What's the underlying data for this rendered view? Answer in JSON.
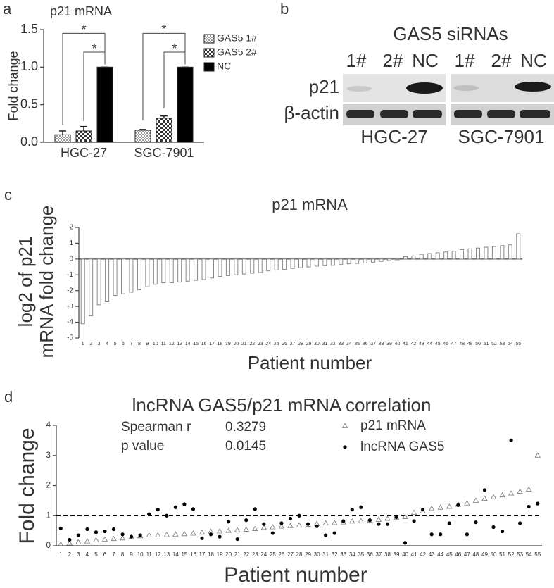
{
  "chart_data": [
    {
      "type": "bar",
      "label": "a",
      "title": "p21 mRNA",
      "ylabel": "Fold change",
      "categories": [
        "HGC-27",
        "SGC-7901"
      ],
      "series": [
        {
          "name": "GAS5 1#",
          "color": "#9a9a9a",
          "values": [
            0.1,
            0.16
          ],
          "errors": [
            0.05,
            0.01
          ]
        },
        {
          "name": "GAS5 2#",
          "color": "#333333",
          "values": [
            0.15,
            0.32
          ],
          "errors": [
            0.06,
            0.03
          ]
        },
        {
          "name": "NC",
          "color": "#000000",
          "values": [
            1.0,
            1.0
          ],
          "errors": [
            0,
            0
          ]
        }
      ],
      "significance": [
        "*",
        "*",
        "*",
        "*"
      ],
      "ylim": [
        0,
        1.5
      ],
      "yticks": [
        {
          "value": 0,
          "label": "0.0"
        },
        0.5,
        {
          "value": 1,
          "label": "1.0"
        },
        {
          "value": 1.5,
          "label": "1.5"
        }
      ]
    },
    {
      "type": "bar",
      "label": "c",
      "title": "p21 mRNA",
      "ylabel": [
        "log2 of p21",
        "mRNA fold change"
      ],
      "xlabel": "Patient number",
      "categories": [
        "1",
        "2",
        "3",
        "4",
        "5",
        "6",
        "7",
        "8",
        "9",
        "10",
        "11",
        "12",
        "13",
        "14",
        "15",
        "16",
        "17",
        "18",
        "19",
        "20",
        "21",
        "22",
        "23",
        "24",
        "25",
        "26",
        "27",
        "28",
        "29",
        "30",
        "31",
        "32",
        "33",
        "34",
        "35",
        "36",
        "37",
        "38",
        "39",
        "40",
        "41",
        "42",
        "43",
        "44",
        "45",
        "46",
        "47",
        "48",
        "49",
        "50",
        "51",
        "52",
        "53",
        "54",
        "55"
      ],
      "values": [
        -4.1,
        -3.6,
        -2.9,
        -2.7,
        -2.3,
        -2.2,
        -2.1,
        -1.95,
        -1.75,
        -1.6,
        -1.5,
        -1.5,
        -1.45,
        -1.4,
        -1.35,
        -1.3,
        -1.2,
        -1.1,
        -1.05,
        -1.0,
        -0.95,
        -0.9,
        -0.85,
        -0.75,
        -0.7,
        -0.65,
        -0.6,
        -0.55,
        -0.5,
        -0.45,
        -0.42,
        -0.4,
        -0.35,
        -0.3,
        -0.28,
        -0.25,
        -0.2,
        -0.15,
        -0.1,
        -0.05,
        0.15,
        0.2,
        0.3,
        0.35,
        0.4,
        0.45,
        0.5,
        0.6,
        0.65,
        0.7,
        0.75,
        0.8,
        0.85,
        0.9,
        1.6
      ],
      "color": "#888888",
      "ylim": [
        -5,
        2
      ],
      "yticks": [
        -5,
        -4,
        -3,
        -2,
        -1,
        0,
        1,
        2
      ]
    },
    {
      "type": "scatter",
      "label": "d",
      "title": "lncRNA GAS5/p21 mRNA correlation",
      "ylabel": "Fold change",
      "xlabel": "Patient number",
      "stats": [
        {
          "label": "Spearman r",
          "value": 0.3279
        },
        {
          "label": "p value",
          "value": 0.0145
        }
      ],
      "categories": [
        "1",
        "2",
        "3",
        "4",
        "5",
        "6",
        "7",
        "8",
        "9",
        "10",
        "11",
        "12",
        "13",
        "14",
        "15",
        "16",
        "17",
        "18",
        "19",
        "20",
        "21",
        "22",
        "23",
        "24",
        "25",
        "26",
        "27",
        "28",
        "29",
        "30",
        "31",
        "32",
        "33",
        "34",
        "35",
        "36",
        "37",
        "38",
        "39",
        "40",
        "41",
        "42",
        "43",
        "44",
        "45",
        "46",
        "47",
        "48",
        "49",
        "50",
        "51",
        "52",
        "53",
        "54",
        "55"
      ],
      "series": [
        {
          "name": "p21 mRNA",
          "marker": "triangle",
          "color": "#777777",
          "values": [
            0.05,
            0.08,
            0.12,
            0.15,
            0.19,
            0.21,
            0.23,
            0.25,
            0.29,
            0.32,
            0.35,
            0.35,
            0.36,
            0.38,
            0.39,
            0.41,
            0.44,
            0.47,
            0.48,
            0.5,
            0.52,
            0.54,
            0.56,
            0.6,
            0.62,
            0.64,
            0.66,
            0.68,
            0.7,
            0.73,
            0.75,
            0.76,
            0.78,
            0.81,
            0.82,
            0.84,
            0.87,
            0.9,
            0.93,
            0.96,
            1.1,
            1.15,
            1.23,
            1.27,
            1.3,
            1.37,
            1.41,
            1.5,
            1.57,
            1.62,
            1.68,
            1.74,
            1.8,
            1.87,
            3.0
          ]
        },
        {
          "name": "lncRNA GAS5",
          "marker": "circle",
          "color": "#000000",
          "values": [
            0.58,
            0.2,
            0.35,
            0.55,
            0.45,
            0.48,
            0.55,
            0.38,
            0.3,
            0.35,
            1.05,
            1.2,
            1.0,
            1.28,
            1.38,
            1.22,
            0.25,
            0.38,
            0.3,
            0.8,
            0.22,
            0.85,
            1.22,
            0.72,
            0.42,
            0.75,
            0.9,
            1.0,
            0.72,
            0.65,
            0.35,
            0.42,
            0.82,
            1.2,
            1.28,
            0.85,
            0.72,
            0.72,
            0.95,
            0.1,
            0.82,
            1.2,
            0.38,
            0.38,
            0.75,
            1.35,
            0.38,
            0.78,
            1.85,
            0.62,
            0.48,
            3.5,
            0.75,
            1.3,
            1.4
          ]
        }
      ],
      "reference_line": 1,
      "ylim": [
        0,
        4
      ],
      "yticks": [
        0,
        1,
        2,
        3,
        4
      ]
    }
  ],
  "blot": {
    "label": "b",
    "title": "GAS5 siRNAs",
    "lanes": [
      "1#",
      "2#",
      "NC",
      "1#",
      "2#",
      "NC"
    ],
    "rows": [
      "p21",
      "β-actin"
    ],
    "cell_lines": [
      "HGC-27",
      "SGC-7901"
    ]
  }
}
